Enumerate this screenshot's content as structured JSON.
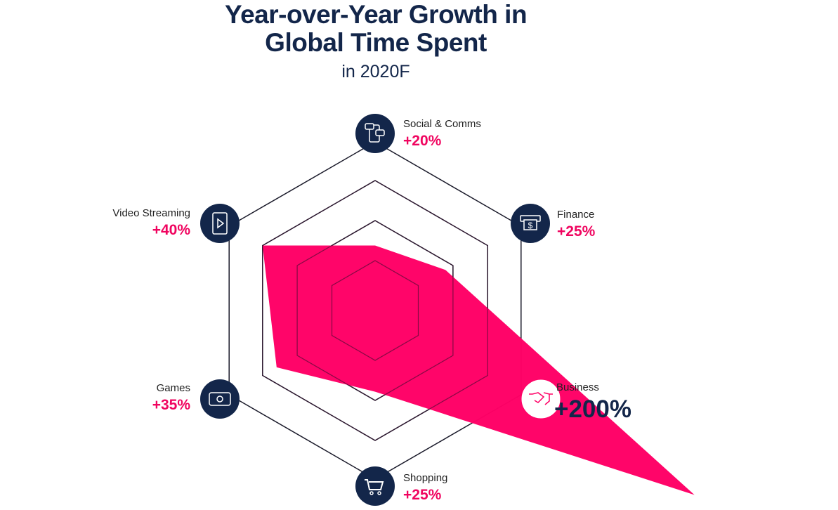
{
  "title_line1": "Year-over-Year Growth in",
  "title_line2": "Global Time Spent",
  "subtitle": "in 2020F",
  "colors": {
    "navy": "#13264a",
    "pink": "#ff0066"
  },
  "chart_data": {
    "type": "radar",
    "title": "Year-over-Year Growth in Global Time Spent",
    "subtitle": "in 2020F",
    "unit": "%",
    "categories": [
      "Social & Comms",
      "Finance",
      "Business",
      "Shopping",
      "Games",
      "Video Streaming"
    ],
    "values": [
      20,
      25,
      200,
      25,
      35,
      40
    ],
    "labels": [
      "+20%",
      "+25%",
      "+200%",
      "+25%",
      "+35%",
      "+40%"
    ],
    "icons": [
      "chat-phone-icon",
      "atm-dollar-icon",
      "handshake-icon",
      "shopping-cart-icon",
      "gamepad-icon",
      "video-play-icon"
    ],
    "grid_levels": 4
  }
}
